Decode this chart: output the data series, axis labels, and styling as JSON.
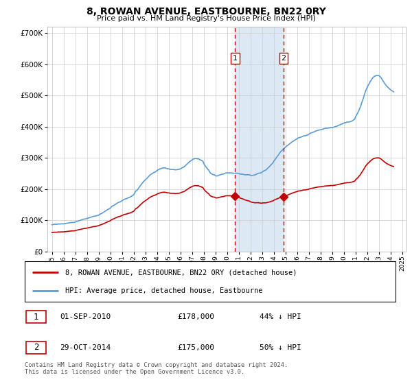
{
  "title": "8, ROWAN AVENUE, EASTBOURNE, BN22 0RY",
  "subtitle": "Price paid vs. HM Land Registry's House Price Index (HPI)",
  "hpi_color": "#5b9bd5",
  "price_color": "#c00000",
  "vline_color": "#c00000",
  "shade_color": "#dce9f5",
  "ylim": [
    0,
    720000
  ],
  "yticks": [
    0,
    100000,
    200000,
    300000,
    400000,
    500000,
    600000,
    700000
  ],
  "purchase1_date": 2010.67,
  "purchase1_price": 178000,
  "purchase1_label": "1",
  "purchase2_date": 2014.83,
  "purchase2_price": 175000,
  "purchase2_label": "2",
  "legend_line1": "8, ROWAN AVENUE, EASTBOURNE, BN22 0RY (detached house)",
  "legend_line2": "HPI: Average price, detached house, Eastbourne",
  "table_row1": [
    "1",
    "01-SEP-2010",
    "£178,000",
    "44% ↓ HPI"
  ],
  "table_row2": [
    "2",
    "29-OCT-2014",
    "£175,000",
    "50% ↓ HPI"
  ],
  "footnote": "Contains HM Land Registry data © Crown copyright and database right 2024.\nThis data is licensed under the Open Government Licence v3.0.",
  "hpi_x": [
    1995.0,
    1995.083,
    1995.167,
    1995.25,
    1995.333,
    1995.417,
    1995.5,
    1995.583,
    1995.667,
    1995.75,
    1995.833,
    1995.917,
    1996.0,
    1996.083,
    1996.167,
    1996.25,
    1996.333,
    1996.417,
    1996.5,
    1996.583,
    1996.667,
    1996.75,
    1996.833,
    1996.917,
    1997.0,
    1997.083,
    1997.167,
    1997.25,
    1997.333,
    1997.417,
    1997.5,
    1997.583,
    1997.667,
    1997.75,
    1997.833,
    1997.917,
    1998.0,
    1998.083,
    1998.167,
    1998.25,
    1998.333,
    1998.417,
    1998.5,
    1998.583,
    1998.667,
    1998.75,
    1998.833,
    1998.917,
    1999.0,
    1999.083,
    1999.167,
    1999.25,
    1999.333,
    1999.417,
    1999.5,
    1999.583,
    1999.667,
    1999.75,
    1999.833,
    1999.917,
    2000.0,
    2000.083,
    2000.167,
    2000.25,
    2000.333,
    2000.417,
    2000.5,
    2000.583,
    2000.667,
    2000.75,
    2000.833,
    2000.917,
    2001.0,
    2001.083,
    2001.167,
    2001.25,
    2001.333,
    2001.417,
    2001.5,
    2001.583,
    2001.667,
    2001.75,
    2001.833,
    2001.917,
    2002.0,
    2002.083,
    2002.167,
    2002.25,
    2002.333,
    2002.417,
    2002.5,
    2002.583,
    2002.667,
    2002.75,
    2002.833,
    2002.917,
    2003.0,
    2003.083,
    2003.167,
    2003.25,
    2003.333,
    2003.417,
    2003.5,
    2003.583,
    2003.667,
    2003.75,
    2003.833,
    2003.917,
    2004.0,
    2004.083,
    2004.167,
    2004.25,
    2004.333,
    2004.417,
    2004.5,
    2004.583,
    2004.667,
    2004.75,
    2004.833,
    2004.917,
    2005.0,
    2005.083,
    2005.167,
    2005.25,
    2005.333,
    2005.417,
    2005.5,
    2005.583,
    2005.667,
    2005.75,
    2005.833,
    2005.917,
    2006.0,
    2006.083,
    2006.167,
    2006.25,
    2006.333,
    2006.417,
    2006.5,
    2006.583,
    2006.667,
    2006.75,
    2006.833,
    2006.917,
    2007.0,
    2007.083,
    2007.167,
    2007.25,
    2007.333,
    2007.417,
    2007.5,
    2007.583,
    2007.667,
    2007.75,
    2007.833,
    2007.917,
    2008.0,
    2008.083,
    2008.167,
    2008.25,
    2008.333,
    2008.417,
    2008.5,
    2008.583,
    2008.667,
    2008.75,
    2008.833,
    2008.917,
    2009.0,
    2009.083,
    2009.167,
    2009.25,
    2009.333,
    2009.417,
    2009.5,
    2009.583,
    2009.667,
    2009.75,
    2009.833,
    2009.917,
    2010.0,
    2010.083,
    2010.167,
    2010.25,
    2010.333,
    2010.417,
    2010.5,
    2010.583,
    2010.667,
    2010.75,
    2010.833,
    2010.917,
    2011.0,
    2011.083,
    2011.167,
    2011.25,
    2011.333,
    2011.417,
    2011.5,
    2011.583,
    2011.667,
    2011.75,
    2011.833,
    2011.917,
    2012.0,
    2012.083,
    2012.167,
    2012.25,
    2012.333,
    2012.417,
    2012.5,
    2012.583,
    2012.667,
    2012.75,
    2012.833,
    2012.917,
    2013.0,
    2013.083,
    2013.167,
    2013.25,
    2013.333,
    2013.417,
    2013.5,
    2013.583,
    2013.667,
    2013.75,
    2013.833,
    2013.917,
    2014.0,
    2014.083,
    2014.167,
    2014.25,
    2014.333,
    2014.417,
    2014.5,
    2014.583,
    2014.667,
    2014.75,
    2014.833,
    2014.917,
    2015.0,
    2015.083,
    2015.167,
    2015.25,
    2015.333,
    2015.417,
    2015.5,
    2015.583,
    2015.667,
    2015.75,
    2015.833,
    2015.917,
    2016.0,
    2016.083,
    2016.167,
    2016.25,
    2016.333,
    2016.417,
    2016.5,
    2016.583,
    2016.667,
    2016.75,
    2016.833,
    2016.917,
    2017.0,
    2017.083,
    2017.167,
    2017.25,
    2017.333,
    2017.417,
    2017.5,
    2017.583,
    2017.667,
    2017.75,
    2017.833,
    2017.917,
    2018.0,
    2018.083,
    2018.167,
    2018.25,
    2018.333,
    2018.417,
    2018.5,
    2018.583,
    2018.667,
    2018.75,
    2018.833,
    2018.917,
    2019.0,
    2019.083,
    2019.167,
    2019.25,
    2019.333,
    2019.417,
    2019.5,
    2019.583,
    2019.667,
    2019.75,
    2019.833,
    2019.917,
    2020.0,
    2020.083,
    2020.167,
    2020.25,
    2020.333,
    2020.417,
    2020.5,
    2020.583,
    2020.667,
    2020.75,
    2020.833,
    2020.917,
    2021.0,
    2021.083,
    2021.167,
    2021.25,
    2021.333,
    2021.417,
    2021.5,
    2021.583,
    2021.667,
    2021.75,
    2021.833,
    2021.917,
    2022.0,
    2022.083,
    2022.167,
    2022.25,
    2022.333,
    2022.417,
    2022.5,
    2022.583,
    2022.667,
    2022.75,
    2022.833,
    2022.917,
    2023.0,
    2023.083,
    2023.167,
    2023.25,
    2023.333,
    2023.417,
    2023.5,
    2023.583,
    2023.667,
    2023.75,
    2023.833,
    2023.917,
    2024.0,
    2024.083,
    2024.167,
    2024.25
  ],
  "hpi_y": [
    86000,
    86500,
    87000,
    87500,
    87000,
    87500,
    88000,
    88500,
    88000,
    88500,
    89000,
    88500,
    89000,
    89500,
    90000,
    90500,
    91000,
    91500,
    92000,
    92500,
    93000,
    93500,
    93000,
    93500,
    95000,
    96000,
    97000,
    98000,
    99000,
    100000,
    101000,
    102000,
    103000,
    104000,
    104500,
    105000,
    106000,
    107000,
    108000,
    109000,
    110000,
    111000,
    112000,
    113000,
    113500,
    114000,
    115000,
    116000,
    117000,
    119000,
    121000,
    122000,
    124000,
    126000,
    128000,
    130000,
    132000,
    134000,
    136000,
    137000,
    140000,
    143000,
    146000,
    147000,
    149000,
    151000,
    153000,
    155000,
    157000,
    158000,
    159000,
    161000,
    163000,
    165000,
    167000,
    168000,
    169000,
    170000,
    172000,
    173000,
    174000,
    176000,
    178000,
    180000,
    182000,
    188000,
    194000,
    195000,
    199000,
    203000,
    208000,
    212000,
    216000,
    220000,
    224000,
    227000,
    230000,
    233000,
    236000,
    240000,
    243000,
    246000,
    248000,
    250000,
    252000,
    254000,
    255000,
    257000,
    260000,
    262000,
    263000,
    265000,
    266000,
    267000,
    268000,
    268000,
    268000,
    267000,
    266000,
    265000,
    265000,
    264000,
    263000,
    263000,
    263000,
    263000,
    262000,
    262000,
    262000,
    263000,
    263000,
    264000,
    265000,
    267000,
    269000,
    270000,
    272000,
    275000,
    278000,
    281000,
    284000,
    287000,
    290000,
    291000,
    294000,
    296000,
    297000,
    298000,
    298000,
    297000,
    298000,
    296000,
    294000,
    293000,
    291000,
    290000,
    282000,
    276000,
    272000,
    268000,
    264000,
    261000,
    255000,
    251000,
    249000,
    247000,
    246000,
    246000,
    243000,
    242000,
    243000,
    244000,
    245000,
    246000,
    247000,
    248000,
    248000,
    250000,
    251000,
    252000,
    252000,
    252000,
    252000,
    252000,
    252000,
    252000,
    251000,
    251000,
    251000,
    251000,
    251000,
    251000,
    249000,
    249000,
    248000,
    248000,
    248000,
    247000,
    246000,
    246000,
    246000,
    246000,
    246000,
    246000,
    244000,
    244000,
    244000,
    245000,
    245000,
    246000,
    248000,
    249000,
    251000,
    251000,
    252000,
    252000,
    255000,
    257000,
    259000,
    260000,
    262000,
    265000,
    268000,
    271000,
    274000,
    278000,
    281000,
    284000,
    290000,
    294000,
    298000,
    303000,
    307000,
    311000,
    316000,
    320000,
    323000,
    326000,
    329000,
    332000,
    335000,
    338000,
    340000,
    342000,
    345000,
    347000,
    350000,
    352000,
    354000,
    356000,
    358000,
    360000,
    362000,
    364000,
    365000,
    366000,
    367000,
    368000,
    370000,
    371000,
    371000,
    372000,
    373000,
    374000,
    376000,
    378000,
    380000,
    381000,
    382000,
    383000,
    385000,
    386000,
    387000,
    388000,
    389000,
    390000,
    390000,
    391000,
    392000,
    393000,
    394000,
    395000,
    395000,
    395000,
    396000,
    396000,
    397000,
    398000,
    397000,
    398000,
    399000,
    400000,
    401000,
    402000,
    404000,
    405000,
    406000,
    408000,
    409000,
    410000,
    412000,
    413000,
    413000,
    415000,
    415000,
    415000,
    416000,
    417000,
    418000,
    420000,
    422000,
    424000,
    432000,
    438000,
    443000,
    450000,
    457000,
    464000,
    474000,
    483000,
    492000,
    502000,
    512000,
    520000,
    527000,
    533000,
    538000,
    545000,
    549000,
    554000,
    558000,
    561000,
    562000,
    564000,
    564000,
    564000,
    564000,
    561000,
    558000,
    553000,
    548000,
    543000,
    538000,
    534000,
    530000,
    527000,
    524000,
    521000,
    518000,
    516000,
    514000,
    512000
  ]
}
